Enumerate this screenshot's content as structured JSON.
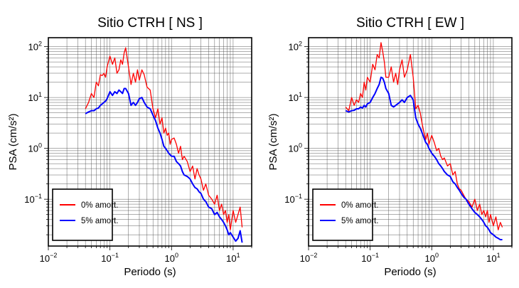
{
  "chart_data": [
    {
      "type": "line",
      "title": "Sitio CTRH [ NS ]",
      "xlabel": "Periodo (s)",
      "ylabel": "PSA (cm/s²)",
      "xscale": "log",
      "yscale": "log",
      "xlim": [
        0.01,
        20
      ],
      "ylim": [
        0.012,
        150
      ],
      "grid": true,
      "legend_position": "bottom-left",
      "x_ticks": [
        "10^-2",
        "10^-1",
        "10^0",
        "10^1"
      ],
      "y_ticks": [
        "10^-1",
        "10^0",
        "10^1",
        "10^2"
      ],
      "series": [
        {
          "name": "0% amort.",
          "color": "#ff0000",
          "x": [
            0.04,
            0.045,
            0.05,
            0.055,
            0.06,
            0.065,
            0.07,
            0.075,
            0.08,
            0.085,
            0.09,
            0.1,
            0.11,
            0.12,
            0.13,
            0.14,
            0.15,
            0.16,
            0.17,
            0.18,
            0.2,
            0.22,
            0.24,
            0.26,
            0.28,
            0.3,
            0.33,
            0.36,
            0.4,
            0.45,
            0.5,
            0.55,
            0.6,
            0.65,
            0.7,
            0.75,
            0.8,
            0.85,
            0.9,
            0.95,
            1.0,
            1.1,
            1.2,
            1.3,
            1.4,
            1.5,
            1.6,
            1.8,
            2.0,
            2.2,
            2.4,
            2.6,
            2.8,
            3.0,
            3.3,
            3.6,
            4.0,
            4.5,
            5.0,
            5.5,
            6.0,
            6.5,
            7.0,
            7.5,
            8.0,
            8.5,
            9.0,
            10.0,
            11.0,
            12.0,
            13.0,
            14.0
          ],
          "y": [
            6.0,
            8.0,
            12.0,
            10.0,
            20.0,
            17.0,
            28.0,
            27.0,
            30.0,
            25.0,
            40.0,
            65.0,
            45.0,
            60.0,
            30.0,
            35.0,
            55.0,
            45.0,
            75.0,
            95.0,
            40.0,
            18.0,
            30.0,
            20.0,
            35.0,
            22.0,
            35.0,
            28.0,
            16.0,
            14.0,
            6.0,
            4.0,
            6.0,
            3.0,
            4.0,
            2.0,
            2.5,
            1.8,
            2.0,
            1.2,
            1.5,
            1.6,
            1.2,
            0.8,
            1.1,
            0.6,
            0.7,
            0.55,
            0.35,
            0.45,
            0.25,
            0.4,
            0.3,
            0.25,
            0.15,
            0.2,
            0.12,
            0.1,
            0.08,
            0.12,
            0.06,
            0.08,
            0.05,
            0.06,
            0.035,
            0.05,
            0.025,
            0.06,
            0.035,
            0.05,
            0.07,
            0.028
          ]
        },
        {
          "name": "5% amort.",
          "color": "#0000ff",
          "x": [
            0.04,
            0.045,
            0.05,
            0.055,
            0.06,
            0.065,
            0.07,
            0.075,
            0.08,
            0.085,
            0.09,
            0.1,
            0.11,
            0.12,
            0.13,
            0.14,
            0.15,
            0.16,
            0.17,
            0.18,
            0.2,
            0.22,
            0.24,
            0.26,
            0.28,
            0.3,
            0.33,
            0.36,
            0.4,
            0.45,
            0.5,
            0.55,
            0.6,
            0.65,
            0.7,
            0.75,
            0.8,
            0.85,
            0.9,
            0.95,
            1.0,
            1.1,
            1.2,
            1.3,
            1.4,
            1.5,
            1.6,
            1.8,
            2.0,
            2.2,
            2.4,
            2.6,
            2.8,
            3.0,
            3.3,
            3.6,
            4.0,
            4.5,
            5.0,
            5.5,
            6.0,
            6.5,
            7.0,
            7.5,
            8.0,
            8.5,
            9.0,
            10.0,
            11.0,
            12.0,
            13.0,
            14.0
          ],
          "y": [
            4.8,
            5.2,
            5.5,
            5.5,
            6.0,
            6.2,
            7.0,
            7.5,
            8.0,
            8.5,
            9.5,
            13.0,
            11.0,
            13.0,
            12.0,
            14.0,
            13.0,
            12.0,
            15.0,
            15.0,
            12.0,
            7.0,
            8.0,
            7.0,
            8.0,
            9.5,
            10.0,
            8.0,
            6.5,
            6.0,
            4.5,
            3.5,
            2.5,
            2.0,
            1.5,
            1.1,
            1.0,
            0.9,
            0.8,
            0.75,
            0.7,
            0.7,
            0.55,
            0.5,
            0.45,
            0.35,
            0.3,
            0.28,
            0.25,
            0.2,
            0.17,
            0.16,
            0.14,
            0.13,
            0.1,
            0.09,
            0.07,
            0.065,
            0.05,
            0.055,
            0.045,
            0.04,
            0.035,
            0.03,
            0.025,
            0.02,
            0.022,
            0.018,
            0.015,
            0.017,
            0.024,
            0.014
          ]
        }
      ]
    },
    {
      "type": "line",
      "title": "Sitio CTRH [ EW ]",
      "xlabel": "Periodo (s)",
      "ylabel": "PSA (cm/s²)",
      "xscale": "log",
      "yscale": "log",
      "xlim": [
        0.01,
        20
      ],
      "ylim": [
        0.012,
        150
      ],
      "grid": true,
      "legend_position": "bottom-left",
      "x_ticks": [
        "10^-2",
        "10^-1",
        "10^0",
        "10^1"
      ],
      "y_ticks": [
        "10^-1",
        "10^0",
        "10^1",
        "10^2"
      ],
      "series": [
        {
          "name": "0% amort.",
          "color": "#ff0000",
          "x": [
            0.04,
            0.045,
            0.05,
            0.055,
            0.06,
            0.065,
            0.07,
            0.075,
            0.08,
            0.085,
            0.09,
            0.1,
            0.11,
            0.12,
            0.13,
            0.14,
            0.15,
            0.16,
            0.17,
            0.18,
            0.2,
            0.22,
            0.24,
            0.26,
            0.28,
            0.3,
            0.33,
            0.36,
            0.4,
            0.45,
            0.5,
            0.55,
            0.6,
            0.65,
            0.7,
            0.75,
            0.8,
            0.85,
            0.9,
            0.95,
            1.0,
            1.1,
            1.2,
            1.3,
            1.4,
            1.5,
            1.6,
            1.8,
            2.0,
            2.2,
            2.4,
            2.6,
            2.8,
            3.0,
            3.3,
            3.6,
            4.0,
            4.5,
            5.0,
            5.5,
            6.0,
            6.5,
            7.0,
            7.5,
            8.0,
            8.5,
            9.0,
            10.0,
            11.0,
            12.0,
            13.0,
            14.0
          ],
          "y": [
            6.5,
            5.5,
            10.0,
            7.0,
            9.0,
            8.0,
            12.0,
            10.0,
            20.0,
            14.0,
            25.0,
            20.0,
            45.0,
            35.0,
            70.0,
            60.0,
            120.0,
            80.0,
            50.0,
            25.0,
            25.0,
            40.0,
            20.0,
            30.0,
            18.0,
            35.0,
            55.0,
            25.0,
            35.0,
            70.0,
            25.0,
            6.0,
            7.0,
            5.0,
            3.0,
            2.0,
            1.5,
            2.0,
            1.2,
            1.5,
            1.8,
            1.3,
            0.9,
            1.0,
            0.7,
            0.6,
            0.65,
            0.45,
            0.5,
            0.3,
            0.35,
            0.2,
            0.16,
            0.15,
            0.12,
            0.1,
            0.09,
            0.07,
            0.1,
            0.06,
            0.08,
            0.05,
            0.06,
            0.045,
            0.06,
            0.035,
            0.05,
            0.03,
            0.045,
            0.025,
            0.035,
            0.028
          ]
        },
        {
          "name": "5% amort.",
          "color": "#0000ff",
          "x": [
            0.04,
            0.045,
            0.05,
            0.055,
            0.06,
            0.065,
            0.07,
            0.075,
            0.08,
            0.085,
            0.09,
            0.1,
            0.11,
            0.12,
            0.13,
            0.14,
            0.15,
            0.16,
            0.17,
            0.18,
            0.2,
            0.22,
            0.24,
            0.26,
            0.28,
            0.3,
            0.33,
            0.36,
            0.4,
            0.45,
            0.5,
            0.55,
            0.6,
            0.65,
            0.7,
            0.75,
            0.8,
            0.85,
            0.9,
            0.95,
            1.0,
            1.1,
            1.2,
            1.3,
            1.4,
            1.5,
            1.6,
            1.8,
            2.0,
            2.2,
            2.4,
            2.6,
            2.8,
            3.0,
            3.3,
            3.6,
            4.0,
            4.5,
            5.0,
            5.5,
            6.0,
            6.5,
            7.0,
            7.5,
            8.0,
            8.5,
            9.0,
            10.0,
            11.0,
            12.0,
            13.0,
            14.0
          ],
          "y": [
            5.5,
            5.2,
            5.5,
            5.6,
            6.0,
            6.0,
            6.5,
            6.2,
            7.0,
            6.5,
            7.5,
            8.0,
            10.0,
            12.0,
            15.0,
            18.0,
            25.0,
            24.0,
            20.0,
            15.0,
            12.0,
            7.0,
            6.5,
            7.0,
            7.5,
            8.0,
            9.0,
            8.0,
            10.0,
            11.0,
            9.0,
            4.0,
            3.0,
            2.5,
            2.0,
            1.6,
            1.3,
            1.2,
            1.0,
            0.9,
            0.8,
            0.7,
            0.6,
            0.5,
            0.45,
            0.4,
            0.35,
            0.3,
            0.28,
            0.22,
            0.2,
            0.17,
            0.15,
            0.13,
            0.11,
            0.1,
            0.08,
            0.065,
            0.055,
            0.05,
            0.045,
            0.04,
            0.035,
            0.03,
            0.028,
            0.025,
            0.022,
            0.02,
            0.018,
            0.017,
            0.016,
            0.016
          ]
        }
      ]
    }
  ]
}
